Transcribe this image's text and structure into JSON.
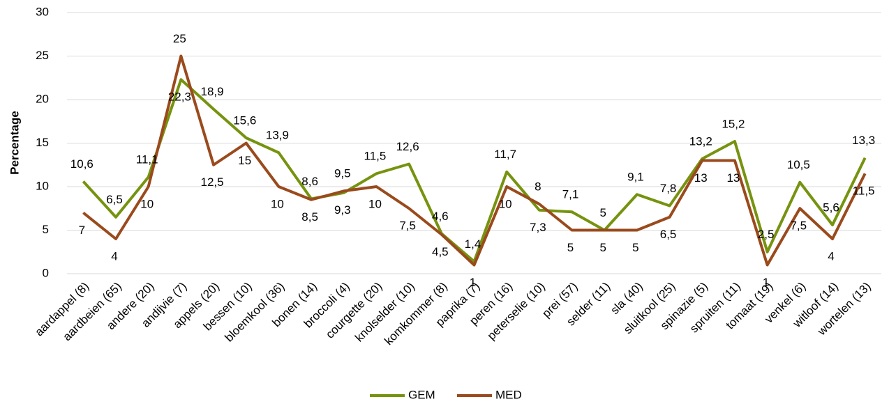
{
  "chart_data": {
    "type": "line",
    "y_label": "Percentage",
    "categories": [
      "aardappel (8)",
      "aardbeien (65)",
      "andere (20)",
      "andijvie (7)",
      "appels (20)",
      "bessen (10)",
      "bloemkool (36)",
      "bonen (14)",
      "broccoli (4)",
      "courgette (20)",
      "knolselder (10)",
      "komkommer (8)",
      "paprika (7)",
      "peren (16)",
      "peterselie (10)",
      "prei (57)",
      "selder (11)",
      "sla (40)",
      "sluitkool (25)",
      "spinazie (5)",
      "spruiten (11)",
      "tomaat (19)",
      "venkel (6)",
      "witloof (14)",
      "wortelen (13)"
    ],
    "series": [
      {
        "name": "GEM",
        "color": "#76930f",
        "values": [
          10.6,
          6.5,
          11.1,
          22.3,
          18.9,
          15.6,
          13.9,
          8.6,
          9.3,
          11.5,
          12.6,
          4.6,
          1.4,
          11.7,
          7.3,
          7.1,
          5,
          9.1,
          7.8,
          13.2,
          15.2,
          2.5,
          10.5,
          5.6,
          13.3
        ],
        "value_labels": [
          "10,6",
          "6,5",
          "11,1",
          "22,3",
          "18,9",
          "15,6",
          "13,9",
          "8,6",
          "9,3",
          "11,5",
          "12,6",
          "4,6",
          "1,4",
          "11,7",
          "7,3",
          "7,1",
          "5",
          "9,1",
          "7,8",
          "13,2",
          "15,2",
          "2,5",
          "10,5",
          "5,6",
          "13,3"
        ]
      },
      {
        "name": "MED",
        "color": "#9a4a1c",
        "values": [
          7,
          4,
          10,
          25,
          12.5,
          15,
          10,
          8.5,
          9.5,
          10,
          7.5,
          4.5,
          1,
          10,
          8,
          5,
          5,
          5,
          6.5,
          13,
          13,
          1,
          7.5,
          4,
          11.5
        ],
        "value_labels": [
          "7",
          "4",
          "10",
          "25",
          "12,5",
          "15",
          "10",
          "8,5",
          "9,5",
          "10",
          "7,5",
          "4,5",
          "1",
          "10",
          "8",
          "5",
          "5",
          "5",
          "6,5",
          "13",
          "13",
          "1",
          "7,5",
          "4",
          "11,5"
        ]
      }
    ],
    "ylim": [
      0,
      30
    ],
    "yticks": [
      0,
      5,
      10,
      15,
      20,
      25,
      30
    ],
    "grid": true,
    "legend": "bottom"
  }
}
